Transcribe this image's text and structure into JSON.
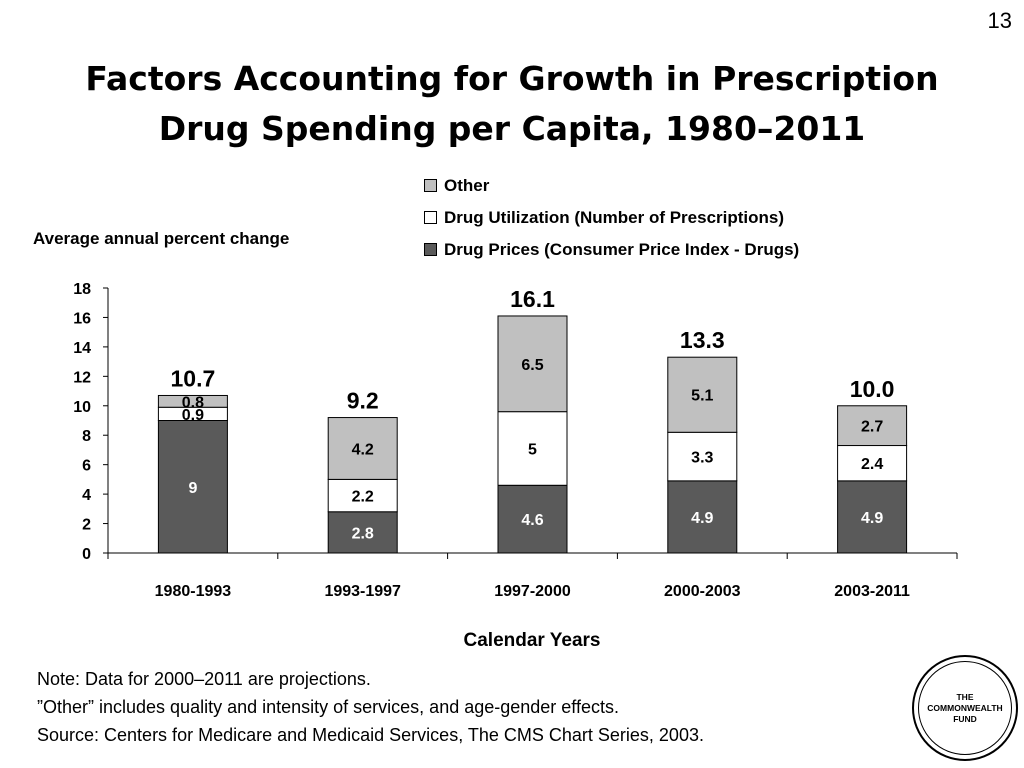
{
  "slide_number": "13",
  "title_line1": "Factors Accounting for Growth in Prescription",
  "title_line2": "Drug Spending per Capita, 1980–2011",
  "logo_text": "THE\nCOMMONWEALTH\nFUND",
  "notes": [
    "Note: Data for 2000–2011 are projections.",
    "”Other” includes quality and intensity of services, and age-gender effects.",
    "Source: Centers for Medicare and Medicaid Services, The CMS Chart Series, 2003."
  ],
  "chart_data": {
    "type": "bar",
    "stacked": true,
    "ylabel": "Average annual percent change",
    "xlabel": "Calendar Years",
    "ylim": [
      0,
      18
    ],
    "yticks": [
      0,
      2,
      4,
      6,
      8,
      10,
      12,
      14,
      16,
      18
    ],
    "grid": false,
    "legend_position": "top-right",
    "categories": [
      "1980-1993",
      "1993-1997",
      "1997-2000",
      "2000-2003",
      "2003-2011"
    ],
    "totals": [
      "10.7",
      "9.2",
      "16.1",
      "13.3",
      "10.0"
    ],
    "series": [
      {
        "name": "Drug Prices (Consumer Price Index - Drugs)",
        "color": "#5a5a5a",
        "label_color": "#ffffff",
        "values": [
          9,
          2.8,
          4.6,
          4.9,
          4.9
        ],
        "labels": [
          "9",
          "2.8",
          "4.6",
          "4.9",
          "4.9"
        ]
      },
      {
        "name": "Drug Utilization (Number of Prescriptions)",
        "color": "#ffffff",
        "label_color": "#000000",
        "values": [
          0.9,
          2.2,
          5,
          3.3,
          2.4
        ],
        "labels": [
          "0.9",
          "2.2",
          "5",
          "3.3",
          "2.4"
        ]
      },
      {
        "name": "Other",
        "color": "#c0c0c0",
        "label_color": "#000000",
        "values": [
          0.8,
          4.2,
          6.5,
          5.1,
          2.7
        ],
        "labels": [
          "0.8",
          "4.2",
          "6.5",
          "5.1",
          "2.7"
        ]
      }
    ]
  }
}
